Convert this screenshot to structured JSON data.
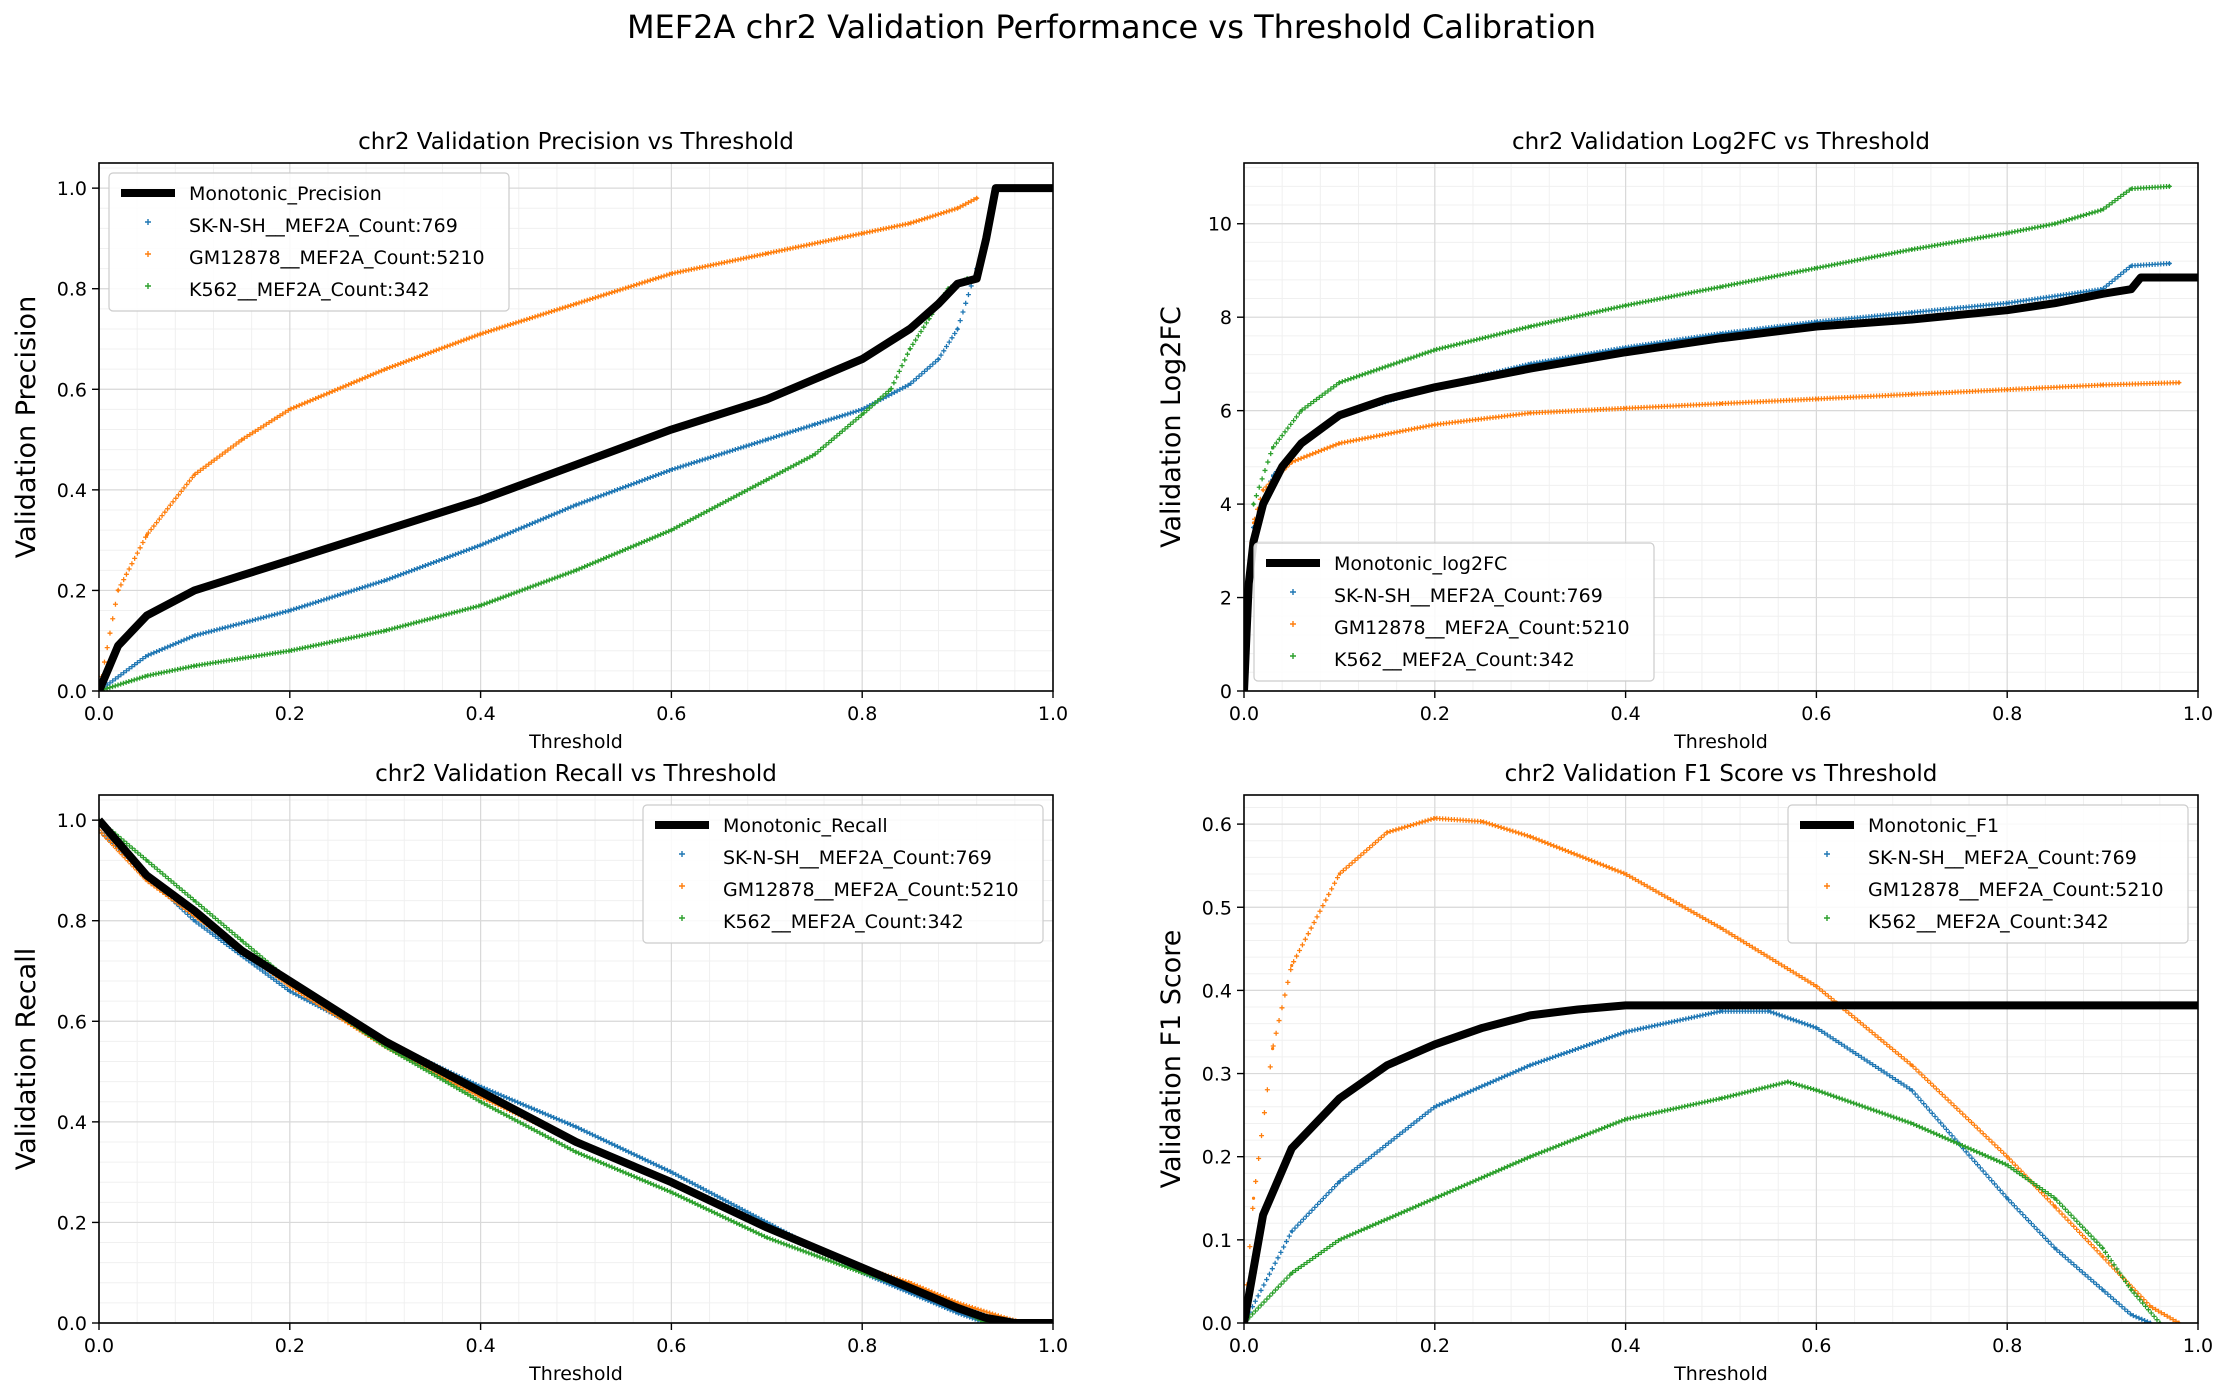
{
  "figure_title": "MEF2A chr2 Validation Performance vs Threshold Calibration",
  "colors": {
    "monotonic": "#000000",
    "sknsh": "#1f77b4",
    "gm12878": "#ff7f0e",
    "k562": "#2ca02c",
    "grid": "#d9d9d9"
  },
  "chart_data": [
    {
      "id": "precision",
      "type": "scatter",
      "title": "chr2 Validation Precision vs Threshold",
      "xlabel": "Threshold",
      "ylabel": "Validation Precision",
      "xlim": [
        0,
        1
      ],
      "ylim": [
        0,
        1.05
      ],
      "xticks": [
        "0.0",
        "0.2",
        "0.4",
        "0.6",
        "0.8",
        "1.0"
      ],
      "yticks": [
        "0.0",
        "0.2",
        "0.4",
        "0.6",
        "0.8",
        "1.0"
      ],
      "grid": true,
      "legend_position": "upper-left",
      "series": [
        {
          "name": "Monotonic_Precision",
          "kind": "line",
          "colorKey": "monotonic",
          "x": [
            0,
            0.02,
            0.05,
            0.1,
            0.15,
            0.2,
            0.3,
            0.4,
            0.5,
            0.6,
            0.7,
            0.75,
            0.8,
            0.85,
            0.88,
            0.9,
            0.92,
            0.93,
            0.94,
            0.96,
            1.0
          ],
          "y": [
            0,
            0.09,
            0.15,
            0.2,
            0.23,
            0.26,
            0.32,
            0.38,
            0.45,
            0.52,
            0.58,
            0.62,
            0.66,
            0.72,
            0.77,
            0.81,
            0.82,
            0.9,
            1.0,
            1.0,
            1.0
          ]
        },
        {
          "name": "SK-N-SH__MEF2A_Count:769",
          "kind": "markers",
          "colorKey": "sknsh",
          "x": [
            0,
            0.05,
            0.1,
            0.2,
            0.3,
            0.4,
            0.5,
            0.6,
            0.7,
            0.75,
            0.8,
            0.85,
            0.88,
            0.9,
            0.92
          ],
          "y": [
            0,
            0.07,
            0.11,
            0.16,
            0.22,
            0.29,
            0.37,
            0.44,
            0.5,
            0.53,
            0.56,
            0.61,
            0.66,
            0.72,
            0.84
          ]
        },
        {
          "name": "GM12878__MEF2A_Count:5210",
          "kind": "markers",
          "colorKey": "gm12878",
          "x": [
            0,
            0.02,
            0.05,
            0.1,
            0.15,
            0.2,
            0.3,
            0.4,
            0.5,
            0.6,
            0.7,
            0.8,
            0.85,
            0.9,
            0.92
          ],
          "y": [
            0,
            0.2,
            0.31,
            0.43,
            0.5,
            0.56,
            0.64,
            0.71,
            0.77,
            0.83,
            0.87,
            0.91,
            0.93,
            0.96,
            0.98
          ]
        },
        {
          "name": "K562__MEF2A_Count:342",
          "kind": "markers",
          "colorKey": "k562",
          "x": [
            0,
            0.05,
            0.1,
            0.2,
            0.3,
            0.4,
            0.5,
            0.6,
            0.7,
            0.75,
            0.8,
            0.83,
            0.85,
            0.87,
            0.89,
            0.91
          ],
          "y": [
            0,
            0.03,
            0.05,
            0.08,
            0.12,
            0.17,
            0.24,
            0.32,
            0.42,
            0.47,
            0.55,
            0.6,
            0.68,
            0.74,
            0.8,
            0.82
          ]
        }
      ]
    },
    {
      "id": "log2fc",
      "type": "scatter",
      "title": "chr2 Validation Log2FC vs Threshold",
      "xlabel": "Threshold",
      "ylabel": "Validation Log2FC",
      "xlim": [
        0,
        1
      ],
      "ylim": [
        0,
        11.3
      ],
      "xticks": [
        "0.0",
        "0.2",
        "0.4",
        "0.6",
        "0.8",
        "1.0"
      ],
      "yticks": [
        "0",
        "2",
        "4",
        "6",
        "8",
        "10"
      ],
      "grid": true,
      "legend_position": "lower-left",
      "series": [
        {
          "name": "Monotonic_log2FC",
          "kind": "line",
          "colorKey": "monotonic",
          "x": [
            0,
            0.005,
            0.01,
            0.02,
            0.04,
            0.06,
            0.1,
            0.15,
            0.2,
            0.3,
            0.4,
            0.5,
            0.6,
            0.7,
            0.8,
            0.85,
            0.9,
            0.93,
            0.94,
            1.0
          ],
          "y": [
            0,
            2.3,
            3.2,
            4.0,
            4.8,
            5.3,
            5.9,
            6.25,
            6.5,
            6.9,
            7.25,
            7.55,
            7.8,
            7.95,
            8.15,
            8.3,
            8.5,
            8.6,
            8.85,
            8.85
          ]
        },
        {
          "name": "SK-N-SH__MEF2A_Count:769",
          "kind": "markers",
          "colorKey": "sknsh",
          "x": [
            0.01,
            0.03,
            0.06,
            0.1,
            0.2,
            0.3,
            0.4,
            0.5,
            0.6,
            0.7,
            0.8,
            0.9,
            0.93,
            0.97
          ],
          "y": [
            3.5,
            4.6,
            5.3,
            5.9,
            6.5,
            7.0,
            7.35,
            7.65,
            7.9,
            8.1,
            8.3,
            8.6,
            9.1,
            9.15
          ]
        },
        {
          "name": "GM12878__MEF2A_Count:5210",
          "kind": "markers",
          "colorKey": "gm12878",
          "x": [
            0.005,
            0.01,
            0.02,
            0.05,
            0.1,
            0.2,
            0.3,
            0.4,
            0.5,
            0.6,
            0.7,
            0.8,
            0.9,
            0.98
          ],
          "y": [
            2.5,
            3.6,
            4.3,
            4.9,
            5.3,
            5.7,
            5.95,
            6.05,
            6.15,
            6.25,
            6.35,
            6.45,
            6.55,
            6.6
          ]
        },
        {
          "name": "K562__MEF2A_Count:342",
          "kind": "markers",
          "colorKey": "k562",
          "x": [
            0.01,
            0.03,
            0.06,
            0.1,
            0.2,
            0.3,
            0.4,
            0.5,
            0.6,
            0.7,
            0.8,
            0.85,
            0.9,
            0.93,
            0.97
          ],
          "y": [
            4.0,
            5.2,
            6.0,
            6.6,
            7.3,
            7.8,
            8.25,
            8.65,
            9.05,
            9.45,
            9.8,
            10.0,
            10.3,
            10.75,
            10.8
          ]
        }
      ]
    },
    {
      "id": "recall",
      "type": "scatter",
      "title": "chr2 Validation Recall vs Threshold",
      "xlabel": "Threshold",
      "ylabel": "Validation Recall",
      "xlim": [
        0,
        1
      ],
      "ylim": [
        0,
        1.05
      ],
      "xticks": [
        "0.0",
        "0.2",
        "0.4",
        "0.6",
        "0.8",
        "1.0"
      ],
      "yticks": [
        "0.0",
        "0.2",
        "0.4",
        "0.6",
        "0.8",
        "1.0"
      ],
      "grid": true,
      "legend_position": "upper-right",
      "series": [
        {
          "name": "Monotonic_Recall",
          "kind": "line",
          "colorKey": "monotonic",
          "x": [
            0,
            0.05,
            0.1,
            0.15,
            0.2,
            0.3,
            0.4,
            0.5,
            0.6,
            0.7,
            0.8,
            0.85,
            0.9,
            0.93,
            0.96,
            1.0
          ],
          "y": [
            1.0,
            0.89,
            0.82,
            0.74,
            0.68,
            0.56,
            0.46,
            0.36,
            0.28,
            0.19,
            0.11,
            0.07,
            0.03,
            0.01,
            0.0,
            0.0
          ]
        },
        {
          "name": "SK-N-SH__MEF2A_Count:769",
          "kind": "markers",
          "colorKey": "sknsh",
          "x": [
            0,
            0.05,
            0.1,
            0.2,
            0.3,
            0.4,
            0.5,
            0.6,
            0.7,
            0.8,
            0.85,
            0.9,
            0.93
          ],
          "y": [
            0.98,
            0.89,
            0.8,
            0.66,
            0.56,
            0.47,
            0.39,
            0.3,
            0.2,
            0.1,
            0.06,
            0.02,
            0.0
          ]
        },
        {
          "name": "GM12878__MEF2A_Count:5210",
          "kind": "markers",
          "colorKey": "gm12878",
          "x": [
            0,
            0.05,
            0.1,
            0.2,
            0.3,
            0.4,
            0.5,
            0.6,
            0.7,
            0.8,
            0.85,
            0.9,
            0.95,
            0.97
          ],
          "y": [
            0.98,
            0.88,
            0.81,
            0.67,
            0.55,
            0.45,
            0.36,
            0.28,
            0.19,
            0.11,
            0.08,
            0.04,
            0.01,
            0.0
          ]
        },
        {
          "name": "K562__MEF2A_Count:342",
          "kind": "markers",
          "colorKey": "k562",
          "x": [
            0,
            0.05,
            0.1,
            0.15,
            0.2,
            0.3,
            0.4,
            0.5,
            0.6,
            0.7,
            0.8,
            0.85,
            0.9,
            0.93
          ],
          "y": [
            1.0,
            0.92,
            0.84,
            0.76,
            0.68,
            0.55,
            0.44,
            0.34,
            0.26,
            0.17,
            0.1,
            0.07,
            0.03,
            0.0
          ]
        }
      ]
    },
    {
      "id": "f1",
      "type": "scatter",
      "title": "chr2 Validation F1 Score vs Threshold",
      "xlabel": "Threshold",
      "ylabel": "Validation F1 Score",
      "xlim": [
        0,
        1
      ],
      "ylim": [
        0,
        0.635
      ],
      "xticks": [
        "0.0",
        "0.2",
        "0.4",
        "0.6",
        "0.8",
        "1.0"
      ],
      "yticks": [
        "0.0",
        "0.1",
        "0.2",
        "0.3",
        "0.4",
        "0.5",
        "0.6"
      ],
      "grid": true,
      "legend_position": "upper-right",
      "series": [
        {
          "name": "Monotonic_F1",
          "kind": "line",
          "colorKey": "monotonic",
          "x": [
            0,
            0.02,
            0.05,
            0.1,
            0.15,
            0.2,
            0.25,
            0.3,
            0.35,
            0.4,
            0.5,
            0.6,
            0.7,
            0.8,
            0.9,
            1.0
          ],
          "y": [
            0,
            0.13,
            0.21,
            0.27,
            0.31,
            0.335,
            0.355,
            0.37,
            0.377,
            0.382,
            0.382,
            0.382,
            0.382,
            0.382,
            0.382,
            0.382
          ]
        },
        {
          "name": "SK-N-SH__MEF2A_Count:769",
          "kind": "markers",
          "colorKey": "sknsh",
          "x": [
            0,
            0.05,
            0.1,
            0.2,
            0.3,
            0.4,
            0.5,
            0.55,
            0.6,
            0.7,
            0.8,
            0.85,
            0.9,
            0.93,
            0.95
          ],
          "y": [
            0,
            0.11,
            0.17,
            0.26,
            0.31,
            0.35,
            0.375,
            0.375,
            0.355,
            0.28,
            0.15,
            0.09,
            0.04,
            0.01,
            0.0
          ]
        },
        {
          "name": "GM12878__MEF2A_Count:5210",
          "kind": "markers",
          "colorKey": "gm12878",
          "x": [
            0,
            0.01,
            0.03,
            0.05,
            0.1,
            0.15,
            0.2,
            0.25,
            0.3,
            0.4,
            0.5,
            0.6,
            0.7,
            0.8,
            0.85,
            0.9,
            0.95,
            0.98
          ],
          "y": [
            0,
            0.15,
            0.33,
            0.43,
            0.54,
            0.59,
            0.607,
            0.603,
            0.585,
            0.54,
            0.475,
            0.405,
            0.31,
            0.2,
            0.14,
            0.08,
            0.02,
            0.0
          ]
        },
        {
          "name": "K562__MEF2A_Count:342",
          "kind": "markers",
          "colorKey": "k562",
          "x": [
            0,
            0.05,
            0.1,
            0.2,
            0.3,
            0.4,
            0.5,
            0.57,
            0.6,
            0.7,
            0.8,
            0.85,
            0.9,
            0.93,
            0.96
          ],
          "y": [
            0,
            0.06,
            0.1,
            0.15,
            0.2,
            0.245,
            0.27,
            0.29,
            0.28,
            0.24,
            0.19,
            0.15,
            0.09,
            0.04,
            0.0
          ]
        }
      ]
    }
  ]
}
